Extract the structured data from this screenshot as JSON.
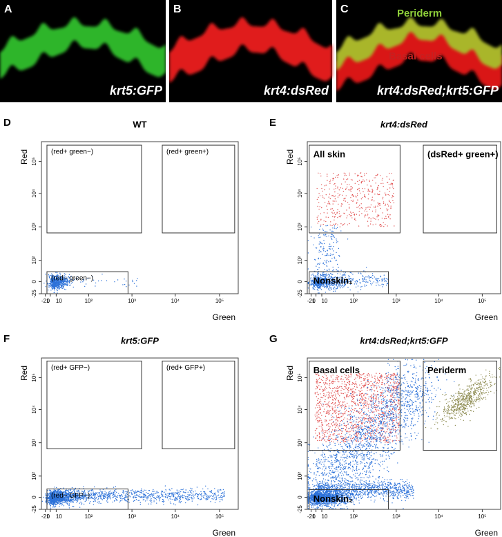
{
  "top_panels": [
    {
      "letter": "A",
      "caption": "krt5:GFP"
    },
    {
      "letter": "B",
      "caption": "krt4:dsRed"
    },
    {
      "letter": "C",
      "caption": "krt4:dsRed;krt5:GFP",
      "annotations": [
        "Periderm",
        "Basal cells"
      ]
    }
  ],
  "x_ticks": [
    "-21",
    "0",
    "10",
    "10²",
    "10³",
    "10⁴",
    "10⁵"
  ],
  "y_ticks": [
    "-25",
    "0",
    "10²",
    "10³",
    "10⁴",
    "10⁵"
  ],
  "plots": [
    {
      "letter": "D",
      "title": "WT",
      "x_label": "Green",
      "y_label": "Red",
      "gates": [
        "(red+ green−)",
        "(red+ green+)",
        "(red− green−)"
      ]
    },
    {
      "letter": "E",
      "title": "krt4:dsRed",
      "x_label": "Green",
      "y_label": "Red",
      "gates": [
        "All skin",
        "(dsRed+ green+)",
        "Nonskin₁"
      ]
    },
    {
      "letter": "F",
      "title": "krt5:GFP",
      "x_label": "Green",
      "y_label": "Red",
      "gates": [
        "(red+ GFP−)",
        "(red+ GFP+)",
        "(red− GFP−)"
      ]
    },
    {
      "letter": "G",
      "title": "krt4:dsRed;krt5:GFP",
      "x_label": "Green",
      "y_label": "Red",
      "gates": [
        "Basal cells",
        "Periderm",
        "Nonskin₂"
      ]
    }
  ]
}
